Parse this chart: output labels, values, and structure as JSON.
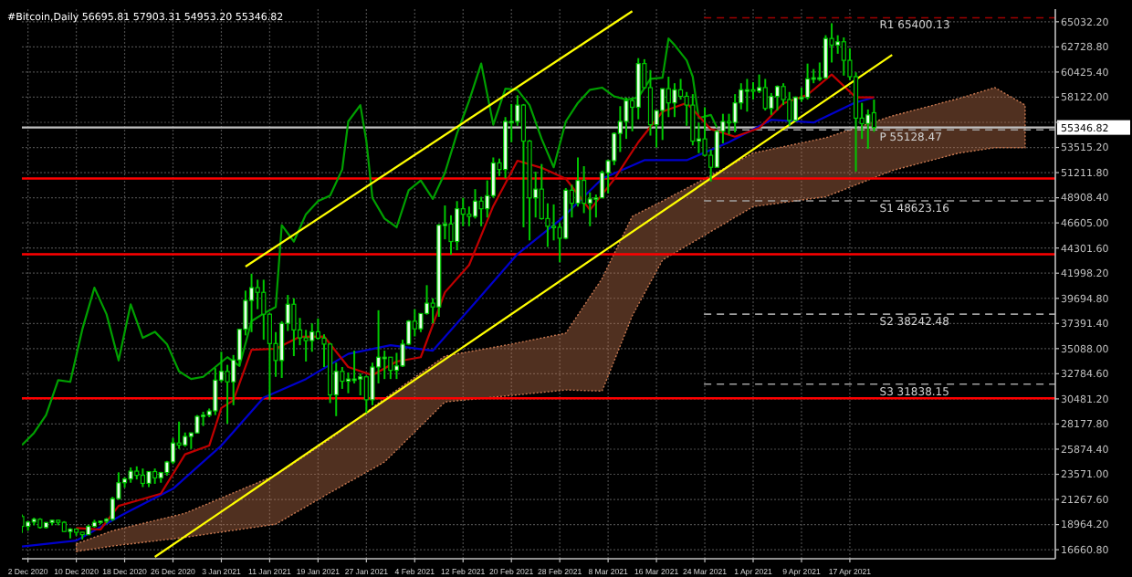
{
  "chart_data": {
    "type": "candlestick",
    "title": "#Bitcoin,Daily  56695.81 57903.31 54953.20 55346.82",
    "xlim": [
      "2020-12-01",
      "2021-05-21"
    ],
    "ylim": [
      15835,
      66190
    ],
    "grid": true,
    "xticks": [
      {
        "value": "2020-12-02",
        "label": "2 Dec 2020"
      },
      {
        "value": "2020-12-10",
        "label": "10 Dec 2020"
      },
      {
        "value": "2020-12-18",
        "label": "18 Dec 2020"
      },
      {
        "value": "2020-12-26",
        "label": "26 Dec 2020"
      },
      {
        "value": "2021-01-03",
        "label": "3 Jan 2021"
      },
      {
        "value": "2021-01-11",
        "label": "11 Jan 2021"
      },
      {
        "value": "2021-01-19",
        "label": "19 Jan 2021"
      },
      {
        "value": "2021-01-27",
        "label": "27 Jan 2021"
      },
      {
        "value": "2021-02-04",
        "label": "4 Feb 2021"
      },
      {
        "value": "2021-02-12",
        "label": "12 Feb 2021"
      },
      {
        "value": "2021-02-20",
        "label": "20 Feb 2021"
      },
      {
        "value": "2021-02-28",
        "label": "28 Feb 2021"
      },
      {
        "value": "2021-03-08",
        "label": "8 Mar 2021"
      },
      {
        "value": "2021-03-16",
        "label": "16 Mar 2021"
      },
      {
        "value": "2021-03-24",
        "label": "24 Mar 2021"
      },
      {
        "value": "2021-04-01",
        "label": "1 Apr 2021"
      },
      {
        "value": "2021-04-09",
        "label": "9 Apr 2021"
      },
      {
        "value": "2021-04-17",
        "label": "17 Apr 2021"
      }
    ],
    "yticks": [
      {
        "value": 16660.8,
        "label": "16660.80"
      },
      {
        "value": 18964.2,
        "label": "18964.20"
      },
      {
        "value": 21267.6,
        "label": "21267.60"
      },
      {
        "value": 23571,
        "label": "23571.00"
      },
      {
        "value": 25874.4,
        "label": "25874.40"
      },
      {
        "value": 28177.8,
        "label": "28177.80"
      },
      {
        "value": 30481.2,
        "label": "30481.20"
      },
      {
        "value": 32784.6,
        "label": "32784.60"
      },
      {
        "value": 35088,
        "label": "35088.00"
      },
      {
        "value": 37391.4,
        "label": "37391.40"
      },
      {
        "value": 39694.8,
        "label": "39694.80"
      },
      {
        "value": 41998.2,
        "label": "41998.20"
      },
      {
        "value": 44301.6,
        "label": "44301.60"
      },
      {
        "value": 46605,
        "label": "46605.00"
      },
      {
        "value": 48908.4,
        "label": "48908.40"
      },
      {
        "value": 51211.8,
        "label": "51211.80"
      },
      {
        "value": 53515.2,
        "label": "53515.20"
      },
      {
        "value": 55818.6,
        "label": null
      },
      {
        "value": 58122,
        "label": "58122.00"
      },
      {
        "value": 60425.4,
        "label": "60425.40"
      },
      {
        "value": 62728.8,
        "label": "62728.80"
      },
      {
        "value": 65032.2,
        "label": "65032.20"
      }
    ],
    "ref_lines": [
      {
        "axis": "y",
        "value": 65400.13,
        "label": "R1 65400.13",
        "color": "#a00000",
        "line_style": "dashed"
      },
      {
        "axis": "y",
        "value": 55128.47,
        "label": "P 55128.47",
        "color": "#a0a0a0",
        "line_style": "dashed"
      },
      {
        "axis": "y",
        "value": 48623.16,
        "label": "S1 48623.16",
        "color": "#a0a0a0",
        "line_style": "dashed"
      },
      {
        "axis": "y",
        "value": 38242.48,
        "label": "S2 38242.48",
        "color": "#a0a0a0",
        "line_style": "dashed"
      },
      {
        "axis": "y",
        "value": 31838.15,
        "label": "S3 31838.15",
        "color": "#a0a0a0",
        "line_style": "dashed"
      },
      {
        "axis": "y",
        "value": 55346.82,
        "label": "55346.82",
        "color": "#c0c0c0",
        "line_style": "solid"
      },
      {
        "axis": "y",
        "value": 50670,
        "color": "#ff0000",
        "line_style": "solid"
      },
      {
        "axis": "y",
        "value": 43735,
        "color": "#ff0000",
        "line_style": "solid"
      },
      {
        "axis": "y",
        "value": 30530,
        "color": "#ff0000",
        "line_style": "solid"
      }
    ],
    "series": [
      {
        "type": "area",
        "color": "#c87850",
        "x": [
          "2020-12-10",
          "2020-12-16",
          "2020-12-28",
          "2021-01-12",
          "2021-01-21",
          "2021-01-30",
          "2021-02-09",
          "2021-02-20",
          "2021-03-01",
          "2021-03-07",
          "2021-03-12",
          "2021-03-17",
          "2021-04-01",
          "2021-04-13",
          "2021-04-24",
          "2021-05-05",
          "2021-05-11",
          "2021-05-16"
        ],
        "values": [
          null,
          null,
          null,
          null,
          null,
          null,
          null,
          null,
          null,
          null,
          null,
          null,
          null,
          null,
          null,
          null,
          null,
          null
        ],
        "upper": [
          17200,
          18400,
          20000,
          23500,
          26800,
          30500,
          34400,
          35500,
          36500,
          41500,
          47200,
          48600,
          53000,
          54400,
          56400,
          58000,
          59000,
          57400
        ],
        "lower": [
          16500,
          17000,
          17800,
          19000,
          21900,
          24700,
          30200,
          30800,
          31300,
          31200,
          38100,
          43200,
          48100,
          49000,
          51400,
          53000,
          53500,
          53500
        ]
      },
      {
        "type": "line",
        "color": "#00a000",
        "x": [
          "2020-12-01",
          "2020-12-03",
          "2020-12-05",
          "2020-12-07",
          "2020-12-09",
          "2020-12-11",
          "2020-12-13",
          "2020-12-15",
          "2020-12-17",
          "2020-12-19",
          "2020-12-21",
          "2020-12-23",
          "2020-12-25",
          "2020-12-27",
          "2020-12-29",
          "2020-12-31",
          "2021-01-02",
          "2021-01-04",
          "2021-01-06",
          "2021-01-08",
          "2021-01-10",
          "2021-01-12",
          "2021-01-13",
          "2021-01-15",
          "2021-01-17",
          "2021-01-19",
          "2021-01-21",
          "2021-01-23",
          "2021-01-24",
          "2021-01-26",
          "2021-01-27",
          "2021-01-28",
          "2021-01-30",
          "2021-02-01",
          "2021-02-03",
          "2021-02-05",
          "2021-02-07",
          "2021-02-09",
          "2021-02-11",
          "2021-02-13",
          "2021-02-15",
          "2021-02-17",
          "2021-02-19",
          "2021-02-21",
          "2021-02-23",
          "2021-02-25",
          "2021-02-27",
          "2021-03-01",
          "2021-03-03",
          "2021-03-05",
          "2021-03-07",
          "2021-03-09",
          "2021-03-11",
          "2021-03-13",
          "2021-03-15",
          "2021-03-17",
          "2021-03-18",
          "2021-03-19",
          "2021-03-21",
          "2021-03-22",
          "2021-03-23",
          "2021-03-25",
          "2021-03-26"
        ],
        "values": [
          26250,
          27360,
          28990,
          32200,
          32040,
          36860,
          40670,
          38240,
          34000,
          39150,
          36070,
          36630,
          35500,
          33000,
          32300,
          32500,
          33400,
          34300,
          33500,
          37600,
          38300,
          38900,
          46400,
          44900,
          47400,
          48600,
          49100,
          51500,
          55900,
          57400,
          54100,
          48900,
          47000,
          46200,
          49600,
          50500,
          48800,
          51200,
          54800,
          57800,
          61200,
          55600,
          58900,
          58800,
          57400,
          54300,
          51700,
          55900,
          57600,
          58800,
          59000,
          58200,
          57900,
          58100,
          59800,
          59900,
          63500,
          62900,
          61500,
          60000,
          56200,
          56500,
          55346.82
        ]
      },
      {
        "type": "line",
        "color": "#0000cc",
        "x": [
          "2020-12-01",
          "2020-12-10",
          "2020-12-18",
          "2020-12-26",
          "2021-01-03",
          "2021-01-10",
          "2021-01-17",
          "2021-01-24",
          "2021-01-31",
          "2021-02-07",
          "2021-02-14",
          "2021-02-21",
          "2021-02-28",
          "2021-03-07",
          "2021-03-14",
          "2021-03-21",
          "2021-03-28",
          "2021-04-04",
          "2021-04-11",
          "2021-04-18",
          "2021-04-21"
        ],
        "values": [
          16950,
          17500,
          19975,
          22250,
          26200,
          30600,
          32300,
          34600,
          35400,
          34900,
          39300,
          43750,
          46850,
          50650,
          52350,
          52350,
          54000,
          56050,
          55800,
          57650,
          58100
        ]
      },
      {
        "type": "line",
        "color": "#c00000",
        "x": [
          "2020-12-10",
          "2020-12-14",
          "2020-12-17",
          "2020-12-20",
          "2020-12-24",
          "2020-12-28",
          "2021-01-01",
          "2021-01-03",
          "2021-01-05",
          "2021-01-08",
          "2021-01-12",
          "2021-01-16",
          "2021-01-20",
          "2021-01-24",
          "2021-01-28",
          "2021-02-01",
          "2021-02-05",
          "2021-02-09",
          "2021-02-13",
          "2021-02-17",
          "2021-02-21",
          "2021-02-25",
          "2021-03-01",
          "2021-03-05",
          "2021-03-09",
          "2021-03-13",
          "2021-03-17",
          "2021-03-21",
          "2021-03-25",
          "2021-03-29",
          "2021-04-02",
          "2021-04-06",
          "2021-04-10",
          "2021-04-14",
          "2021-04-18",
          "2021-04-21"
        ],
        "values": [
          18650,
          18510,
          20675,
          21150,
          21800,
          25400,
          26200,
          29650,
          30350,
          34975,
          35075,
          36175,
          36200,
          33400,
          32650,
          33900,
          34300,
          40250,
          42750,
          48150,
          52300,
          51650,
          50650,
          47800,
          50600,
          54000,
          56800,
          57600,
          55200,
          54500,
          55300,
          57550,
          58350,
          60200,
          58100,
          58100
        ]
      },
      {
        "type": "line",
        "color": "#ffff00",
        "x": [
          "2021-01-07",
          "2021-03-12"
        ],
        "values": [
          42600,
          66000
        ]
      },
      {
        "type": "line",
        "color": "#ffff00",
        "x": [
          "2020-12-23",
          "2021-04-24"
        ],
        "values": [
          16000,
          62000
        ]
      },
      {
        "color": "#00c800",
        "x": [
          "2020-12-01",
          "2020-12-02",
          "2020-12-03",
          "2020-12-04",
          "2020-12-05",
          "2020-12-06",
          "2020-12-07",
          "2020-12-08",
          "2020-12-09",
          "2020-12-10",
          "2020-12-11",
          "2020-12-12",
          "2020-12-13",
          "2020-12-14",
          "2020-12-15",
          "2020-12-16",
          "2020-12-17",
          "2020-12-18",
          "2020-12-19",
          "2020-12-20",
          "2020-12-21",
          "2020-12-22",
          "2020-12-23",
          "2020-12-24",
          "2020-12-25",
          "2020-12-26",
          "2020-12-27",
          "2020-12-28",
          "2020-12-29",
          "2020-12-30",
          "2020-12-31",
          "2021-01-01",
          "2021-01-02",
          "2021-01-03",
          "2021-01-04",
          "2021-01-05",
          "2021-01-06",
          "2021-01-07",
          "2021-01-08",
          "2021-01-09",
          "2021-01-10",
          "2021-01-11",
          "2021-01-12",
          "2021-01-13",
          "2021-01-14",
          "2021-01-15",
          "2021-01-16",
          "2021-01-17",
          "2021-01-18",
          "2021-01-19",
          "2021-01-20",
          "2021-01-21",
          "2021-01-22",
          "2021-01-23",
          "2021-01-24",
          "2021-01-25",
          "2021-01-26",
          "2021-01-27",
          "2021-01-28",
          "2021-01-29",
          "2021-01-30",
          "2021-01-31",
          "2021-02-01",
          "2021-02-02",
          "2021-02-03",
          "2021-02-04",
          "2021-02-05",
          "2021-02-06",
          "2021-02-07",
          "2021-02-08",
          "2021-02-09",
          "2021-02-10",
          "2021-02-11",
          "2021-02-12",
          "2021-02-13",
          "2021-02-14",
          "2021-02-15",
          "2021-02-16",
          "2021-02-17",
          "2021-02-18",
          "2021-02-19",
          "2021-02-20",
          "2021-02-21",
          "2021-02-22",
          "2021-02-23",
          "2021-02-24",
          "2021-02-25",
          "2021-02-26",
          "2021-02-27",
          "2021-02-28",
          "2021-03-01",
          "2021-03-02",
          "2021-03-03",
          "2021-03-04",
          "2021-03-05",
          "2021-03-06",
          "2021-03-07",
          "2021-03-08",
          "2021-03-09",
          "2021-03-10",
          "2021-03-11",
          "2021-03-12",
          "2021-03-13",
          "2021-03-14",
          "2021-03-15",
          "2021-03-16",
          "2021-03-17",
          "2021-03-18",
          "2021-03-19",
          "2021-03-20",
          "2021-03-21",
          "2021-03-22",
          "2021-03-23",
          "2021-03-24",
          "2021-03-25",
          "2021-03-26",
          "2021-03-27",
          "2021-03-28",
          "2021-03-29",
          "2021-03-30",
          "2021-03-31",
          "2021-04-01",
          "2021-04-02",
          "2021-04-03",
          "2021-04-04",
          "2021-04-05",
          "2021-04-06",
          "2021-04-07",
          "2021-04-08",
          "2021-04-09",
          "2021-04-10",
          "2021-04-11",
          "2021-04-12",
          "2021-04-13",
          "2021-04-14",
          "2021-04-15",
          "2021-04-16",
          "2021-04-17",
          "2021-04-18",
          "2021-04-19",
          "2021-04-20",
          "2021-04-21"
        ],
        "ohlc": [
          [
            19700,
            19900,
            18200,
            18800
          ],
          [
            18800,
            19300,
            18400,
            19200
          ],
          [
            19200,
            19600,
            18900,
            19450
          ],
          [
            19450,
            19550,
            18600,
            18700
          ],
          [
            18700,
            19200,
            18600,
            19150
          ],
          [
            19150,
            19400,
            18900,
            19360
          ],
          [
            19360,
            19420,
            18900,
            19170
          ],
          [
            19170,
            19280,
            18300,
            18330
          ],
          [
            18330,
            18640,
            17700,
            18550
          ],
          [
            18550,
            18600,
            17950,
            18260
          ],
          [
            18260,
            18290,
            17600,
            18040
          ],
          [
            18040,
            18950,
            18000,
            18800
          ],
          [
            18800,
            19400,
            18700,
            19170
          ],
          [
            19170,
            19300,
            19000,
            19280
          ],
          [
            19280,
            19570,
            19080,
            19450
          ],
          [
            19450,
            21500,
            19300,
            21340
          ],
          [
            21340,
            23750,
            21250,
            22800
          ],
          [
            22800,
            23300,
            22350,
            23140
          ],
          [
            23140,
            24200,
            22800,
            23860
          ],
          [
            23860,
            24300,
            23100,
            23480
          ],
          [
            23480,
            24100,
            22400,
            22740
          ],
          [
            22740,
            23850,
            22400,
            23820
          ],
          [
            23820,
            24100,
            22700,
            23240
          ],
          [
            23240,
            23800,
            22800,
            23730
          ],
          [
            23730,
            24800,
            23450,
            24700
          ],
          [
            24700,
            26900,
            24500,
            26440
          ],
          [
            26440,
            28400,
            25900,
            26250
          ],
          [
            26250,
            27400,
            26100,
            27040
          ],
          [
            27040,
            27400,
            25900,
            27360
          ],
          [
            27360,
            29000,
            27300,
            28880
          ],
          [
            28880,
            29300,
            28000,
            28990
          ],
          [
            28990,
            29600,
            28800,
            29380
          ],
          [
            29380,
            33300,
            29000,
            32200
          ],
          [
            32200,
            34800,
            32000,
            33000
          ],
          [
            33000,
            33600,
            28200,
            32040
          ],
          [
            32040,
            34500,
            29900,
            34050
          ],
          [
            34050,
            36900,
            33500,
            36860
          ],
          [
            36860,
            40400,
            36300,
            39500
          ],
          [
            39500,
            41950,
            36600,
            40670
          ],
          [
            40670,
            41400,
            38700,
            40240
          ],
          [
            40240,
            41400,
            35900,
            38240
          ],
          [
            38240,
            38300,
            30400,
            35550
          ],
          [
            35550,
            36600,
            32500,
            34000
          ],
          [
            34000,
            37600,
            32400,
            37400
          ],
          [
            37400,
            40000,
            36700,
            39150
          ],
          [
            39150,
            39700,
            34400,
            36800
          ],
          [
            36800,
            37900,
            35400,
            36070
          ],
          [
            36070,
            36800,
            33900,
            35820
          ],
          [
            35820,
            37400,
            34800,
            36630
          ],
          [
            36630,
            37850,
            35900,
            36040
          ],
          [
            36040,
            36400,
            33400,
            35500
          ],
          [
            35500,
            35600,
            30100,
            30850
          ],
          [
            30850,
            33800,
            28900,
            33000
          ],
          [
            33000,
            33400,
            31400,
            32100
          ],
          [
            32100,
            32900,
            31000,
            32300
          ],
          [
            32300,
            34900,
            31900,
            32300
          ],
          [
            32300,
            32800,
            30800,
            32500
          ],
          [
            32500,
            32600,
            29200,
            30400
          ],
          [
            30400,
            33800,
            29900,
            33400
          ],
          [
            33400,
            38600,
            31900,
            34300
          ],
          [
            34300,
            34900,
            32300,
            34300
          ],
          [
            34300,
            34300,
            32300,
            33100
          ],
          [
            33100,
            34700,
            32300,
            33500
          ],
          [
            33500,
            35900,
            33400,
            35500
          ],
          [
            35500,
            37700,
            35400,
            37600
          ],
          [
            37600,
            38700,
            36200,
            36900
          ],
          [
            36900,
            38300,
            36600,
            38300
          ],
          [
            38300,
            40900,
            38200,
            39250
          ],
          [
            39250,
            39700,
            37400,
            38900
          ],
          [
            38900,
            46500,
            38000,
            46400
          ],
          [
            46400,
            48200,
            45100,
            46500
          ],
          [
            46500,
            47300,
            43700,
            44900
          ],
          [
            44900,
            48600,
            44100,
            47900
          ],
          [
            47900,
            48900,
            46300,
            47400
          ],
          [
            47400,
            48100,
            46300,
            47200
          ],
          [
            47200,
            49700,
            47000,
            48600
          ],
          [
            48600,
            49000,
            46300,
            47900
          ],
          [
            47900,
            50500,
            47100,
            49100
          ],
          [
            49100,
            52600,
            48900,
            52100
          ],
          [
            52100,
            52500,
            50900,
            51500
          ],
          [
            51500,
            56300,
            50700,
            55900
          ],
          [
            55900,
            57500,
            54000,
            55900
          ],
          [
            55900,
            58300,
            55500,
            57400
          ],
          [
            57400,
            57500,
            46200,
            54100
          ],
          [
            54100,
            54200,
            45000,
            48900
          ],
          [
            48900,
            51300,
            47100,
            49700
          ],
          [
            49700,
            52000,
            46900,
            47000
          ],
          [
            47000,
            48400,
            44400,
            46300
          ],
          [
            46300,
            48300,
            45000,
            46200
          ],
          [
            46200,
            46600,
            43000,
            45200
          ],
          [
            45200,
            49800,
            45100,
            49600
          ],
          [
            49600,
            50100,
            47100,
            48400
          ],
          [
            48400,
            52600,
            48100,
            50500
          ],
          [
            50500,
            51800,
            47500,
            48400
          ],
          [
            48400,
            49400,
            46300,
            48800
          ],
          [
            48800,
            49200,
            47100,
            48900
          ],
          [
            48900,
            51400,
            48900,
            51200
          ],
          [
            51200,
            52400,
            49300,
            52300
          ],
          [
            52300,
            54900,
            51900,
            54800
          ],
          [
            54800,
            57300,
            53100,
            55900
          ],
          [
            55900,
            58100,
            54300,
            57800
          ],
          [
            57800,
            58000,
            55000,
            57200
          ],
          [
            57200,
            61700,
            56100,
            61200
          ],
          [
            61200,
            61600,
            58900,
            59000
          ],
          [
            59000,
            60600,
            54600,
            55600
          ],
          [
            55600,
            56900,
            53500,
            56900
          ],
          [
            56900,
            58900,
            54200,
            58900
          ],
          [
            58900,
            60000,
            56300,
            57600
          ],
          [
            57600,
            59400,
            56300,
            58800
          ],
          [
            58800,
            59800,
            57900,
            58200
          ],
          [
            58200,
            58600,
            55500,
            57400
          ],
          [
            57400,
            58400,
            53700,
            54100
          ],
          [
            54100,
            55800,
            53000,
            54300
          ],
          [
            54300,
            57200,
            52700,
            52800
          ],
          [
            52800,
            53300,
            50400,
            51700
          ],
          [
            51700,
            55100,
            51700,
            55000
          ],
          [
            55000,
            56600,
            53900,
            55900
          ],
          [
            55900,
            56600,
            54700,
            55800
          ],
          [
            55800,
            58400,
            54900,
            57600
          ],
          [
            57600,
            59400,
            57000,
            58800
          ],
          [
            58800,
            59800,
            56800,
            58800
          ],
          [
            58800,
            59500,
            57900,
            58700
          ],
          [
            58700,
            60200,
            58500,
            59000
          ],
          [
            59000,
            59800,
            56900,
            57100
          ],
          [
            57100,
            58500,
            56500,
            58200
          ],
          [
            58200,
            59200,
            56900,
            59100
          ],
          [
            59100,
            59400,
            57400,
            57900
          ],
          [
            57900,
            58600,
            55500,
            56000
          ],
          [
            56000,
            58200,
            55900,
            58100
          ],
          [
            58100,
            59000,
            57700,
            58100
          ],
          [
            58100,
            61200,
            57900,
            59800
          ],
          [
            59800,
            60700,
            59400,
            59900
          ],
          [
            59900,
            61300,
            59600,
            59900
          ],
          [
            59900,
            63800,
            59800,
            63500
          ],
          [
            63500,
            64900,
            61300,
            62900
          ],
          [
            62900,
            63800,
            62100,
            63200
          ],
          [
            63200,
            63600,
            60100,
            61500
          ],
          [
            61500,
            62600,
            59700,
            60000
          ],
          [
            60000,
            60400,
            51300,
            56200
          ],
          [
            56200,
            57600,
            54300,
            55700
          ],
          [
            55700,
            57000,
            53400,
            56500
          ],
          [
            56695.81,
            57903.31,
            54953.2,
            55346.82
          ]
        ]
      }
    ]
  }
}
